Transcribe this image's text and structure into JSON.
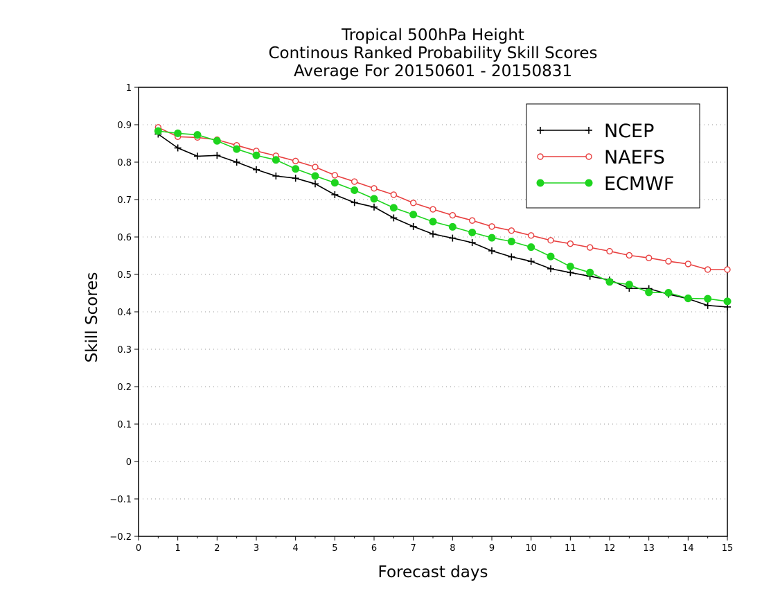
{
  "chart_data": {
    "type": "line",
    "title_lines": [
      "Tropical 500hPa Height",
      "Continous Ranked Probability Skill Scores",
      "Average For 20150601 - 20150831"
    ],
    "xlabel": "Forecast days",
    "ylabel": "Skill Scores",
    "xlim": [
      0,
      15
    ],
    "ylim": [
      -0.2,
      1
    ],
    "x_ticks": [
      0,
      1,
      2,
      3,
      4,
      5,
      6,
      7,
      8,
      9,
      10,
      11,
      12,
      13,
      14,
      15
    ],
    "x_tick_labels": [
      "0",
      "1",
      "2",
      "3",
      "4",
      "5",
      "6",
      "7",
      "8",
      "9",
      "10",
      "11",
      "12",
      "13",
      "14",
      "15"
    ],
    "y_ticks": [
      -0.2,
      -0.1,
      0,
      0.1,
      0.2,
      0.3,
      0.4,
      0.5,
      0.6,
      0.7,
      0.8,
      0.9,
      1
    ],
    "y_tick_labels": [
      "−0.2",
      "−0.1",
      "0",
      "0.1",
      "0.2",
      "0.3",
      "0.4",
      "0.5",
      "0.6",
      "0.7",
      "0.8",
      "0.9",
      "1"
    ],
    "grid": "horizontal dotted",
    "legend_position": "top-right",
    "x": [
      0.5,
      1,
      1.5,
      2,
      2.5,
      3,
      3.5,
      4,
      4.5,
      5,
      5.5,
      6,
      6.5,
      7,
      7.5,
      8,
      8.5,
      9,
      9.5,
      10,
      10.5,
      11,
      11.5,
      12,
      12.5,
      13,
      13.5,
      14,
      14.5,
      15
    ],
    "series": [
      {
        "name": "NCEP",
        "color": "#000000",
        "marker": "plus",
        "values": [
          0.875,
          0.838,
          0.816,
          0.818,
          0.8,
          0.78,
          0.763,
          0.757,
          0.742,
          0.713,
          0.692,
          0.68,
          0.651,
          0.628,
          0.608,
          0.597,
          0.585,
          0.563,
          0.547,
          0.535,
          0.515,
          0.505,
          0.495,
          0.485,
          0.463,
          0.462,
          0.447,
          0.435,
          0.417,
          0.413
        ]
      },
      {
        "name": "NAEFS",
        "color": "#e84040",
        "marker": "open-circle",
        "values": [
          0.893,
          0.868,
          0.866,
          0.86,
          0.845,
          0.83,
          0.817,
          0.803,
          0.787,
          0.765,
          0.748,
          0.73,
          0.713,
          0.691,
          0.674,
          0.658,
          0.644,
          0.628,
          0.617,
          0.604,
          0.591,
          0.582,
          0.572,
          0.562,
          0.551,
          0.544,
          0.535,
          0.528,
          0.513,
          0.513
        ]
      },
      {
        "name": "ECMWF",
        "color": "#1ed41e",
        "marker": "filled-circle",
        "values": [
          0.883,
          0.877,
          0.873,
          0.857,
          0.835,
          0.818,
          0.806,
          0.782,
          0.763,
          0.745,
          0.725,
          0.702,
          0.678,
          0.66,
          0.641,
          0.627,
          0.612,
          0.598,
          0.588,
          0.573,
          0.548,
          0.521,
          0.505,
          0.48,
          0.473,
          0.452,
          0.451,
          0.436,
          0.435,
          0.428
        ]
      }
    ]
  }
}
